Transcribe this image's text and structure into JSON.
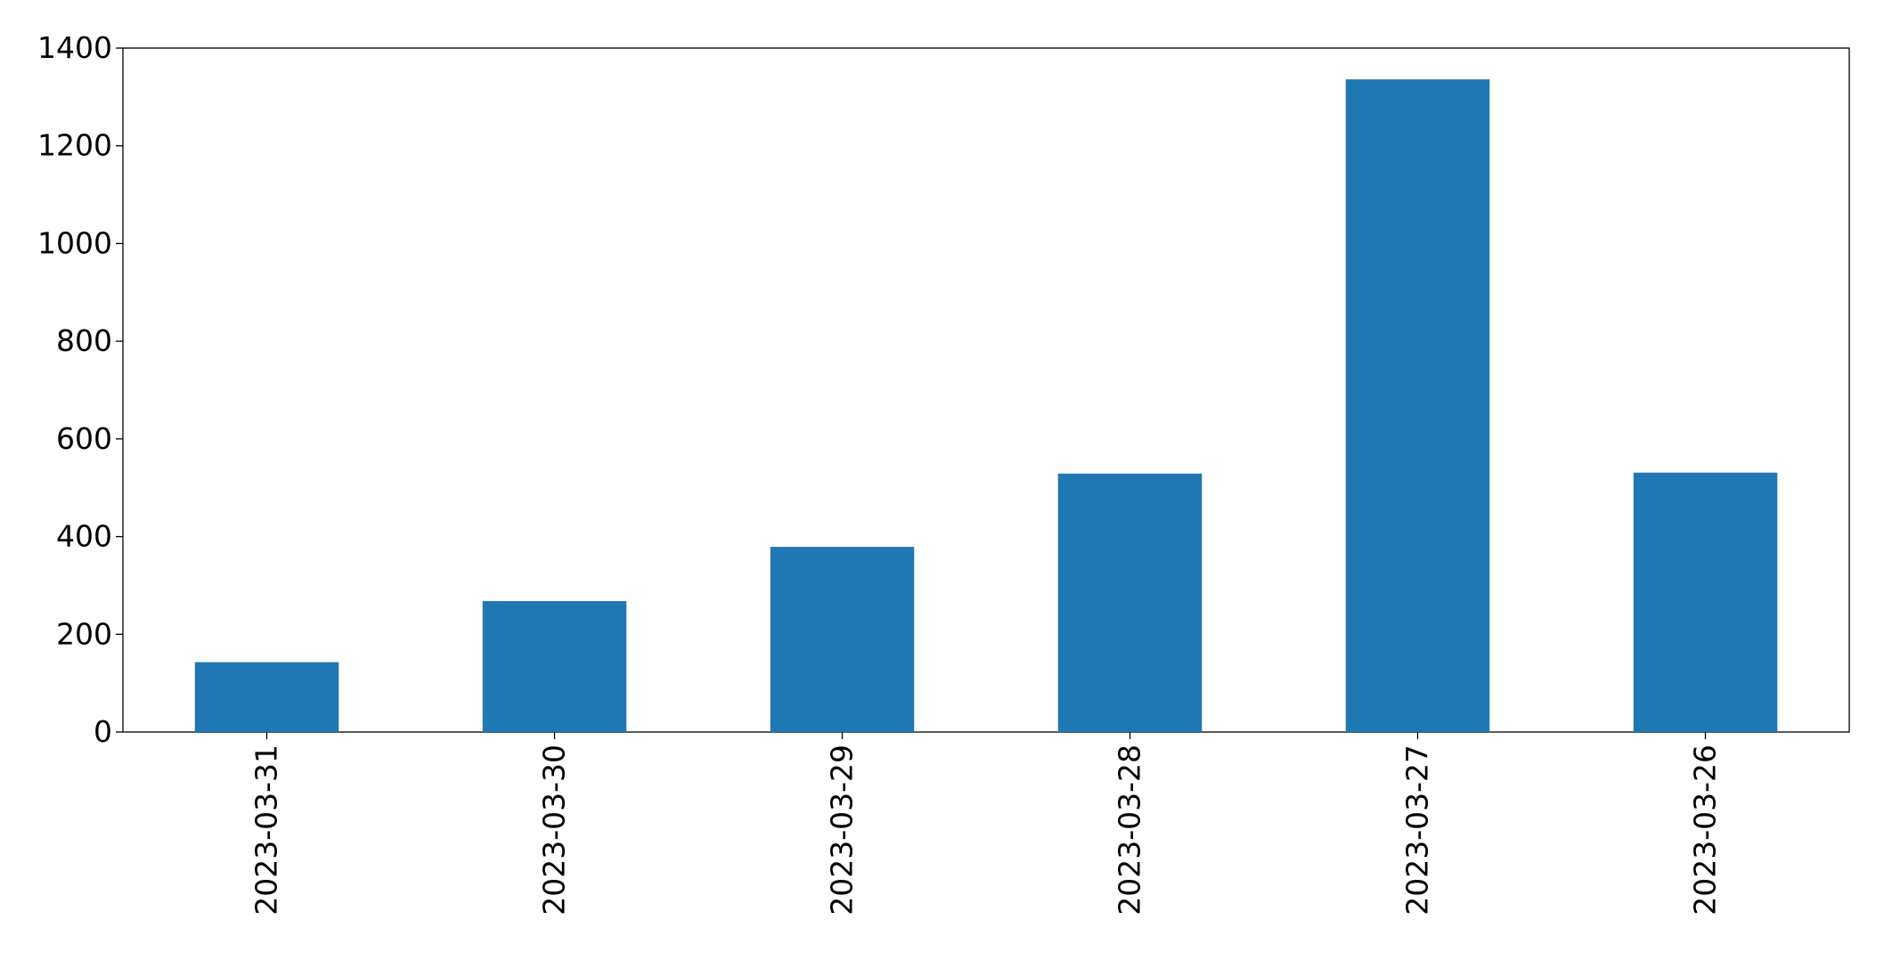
{
  "chart_data": {
    "type": "bar",
    "categories": [
      "2023-03-31",
      "2023-03-30",
      "2023-03-29",
      "2023-03-28",
      "2023-03-27",
      "2023-03-26"
    ],
    "values": [
      143,
      268,
      379,
      529,
      1336,
      531
    ],
    "color": "#1f77b4",
    "ylim": [
      0,
      1400
    ],
    "yticks": [
      0,
      200,
      400,
      600,
      800,
      1000,
      1200,
      1400
    ],
    "grid": false
  }
}
